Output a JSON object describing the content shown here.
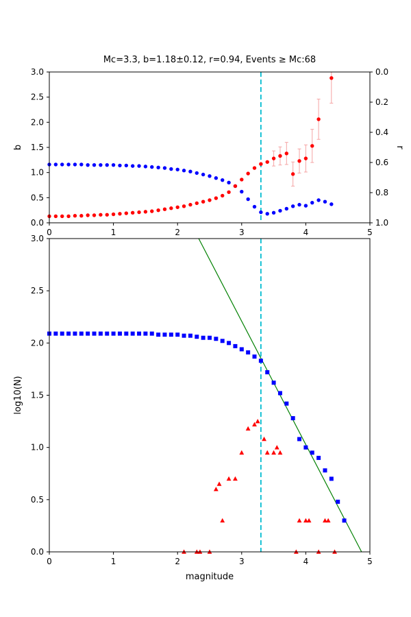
{
  "figure": {
    "title": "Mc=3.3, b=1.18±0.12, r=0.94, Events ≥ Mc:68",
    "stats": {
      "mc": 3.3,
      "b_value": "1.18±0.12",
      "r": 0.94,
      "events_ge_mc": 68
    }
  },
  "chart_data": [
    {
      "id": "b-vs-cutoff",
      "type": "scatter",
      "title": "Mc=3.3, b=1.18±0.12, r=0.94, Events ≥ Mc:68",
      "xlim": [
        0,
        5
      ],
      "ylim": [
        0,
        3
      ],
      "xticks": [
        0,
        1,
        2,
        3,
        4,
        5
      ],
      "xtick_labels": [
        "0",
        "1",
        "2",
        "3",
        "4",
        "5"
      ],
      "yticks": [
        0,
        0.5,
        1,
        1.5,
        2,
        2.5,
        3
      ],
      "ytick_labels": [
        "0.0",
        "0.5",
        "1.0",
        "1.5",
        "2.0",
        "2.5",
        "3.0"
      ],
      "ylabel": "b",
      "y2label": "r",
      "y2ticks": [
        0,
        0.2,
        0.4,
        0.6,
        0.8,
        1.0
      ],
      "y2tick_labels": [
        "0.0",
        "0.2",
        "0.4",
        "0.6",
        "0.8",
        "1.0"
      ],
      "y2_direction": "inverted-top-to-bottom",
      "vline": {
        "x": 3.3,
        "color": "#00bcd0",
        "style": "dashed"
      },
      "series": [
        {
          "name": "b-value",
          "marker": "circle",
          "color": "#0000ff",
          "x": [
            0,
            0.1,
            0.2,
            0.3,
            0.4,
            0.5,
            0.6,
            0.7,
            0.8,
            0.9,
            1,
            1.1,
            1.2,
            1.3,
            1.4,
            1.5,
            1.6,
            1.7,
            1.8,
            1.9,
            2,
            2.1,
            2.2,
            2.3,
            2.4,
            2.5,
            2.6,
            2.7,
            2.8,
            2.9,
            3,
            3.1,
            3.2,
            3.3,
            3.4,
            3.5,
            3.6,
            3.7,
            3.8,
            3.9,
            4,
            4.1,
            4.2,
            4.3,
            4.4
          ],
          "y": [
            1.16,
            1.16,
            1.16,
            1.16,
            1.16,
            1.16,
            1.15,
            1.15,
            1.15,
            1.15,
            1.15,
            1.14,
            1.14,
            1.13,
            1.13,
            1.12,
            1.11,
            1.1,
            1.09,
            1.07,
            1.06,
            1.04,
            1.02,
            0.99,
            0.96,
            0.93,
            0.89,
            0.85,
            0.8,
            0.73,
            0.62,
            0.47,
            0.32,
            0.21,
            0.18,
            0.2,
            0.24,
            0.28,
            0.33,
            0.36,
            0.34,
            0.4,
            0.45,
            0.42,
            0.37
          ]
        },
        {
          "name": "r-value",
          "marker": "circle",
          "color": "#ff0000",
          "error_color": "#f5a3a3",
          "x": [
            0,
            0.1,
            0.2,
            0.3,
            0.4,
            0.5,
            0.6,
            0.7,
            0.8,
            0.9,
            1,
            1.1,
            1.2,
            1.3,
            1.4,
            1.5,
            1.6,
            1.7,
            1.8,
            1.9,
            2,
            2.1,
            2.2,
            2.3,
            2.4,
            2.5,
            2.6,
            2.7,
            2.8,
            2.9,
            3,
            3.1,
            3.2,
            3.3,
            3.4,
            3.5,
            3.6,
            3.7,
            3.8,
            3.9,
            4,
            4.1,
            4.2,
            4.4
          ],
          "y": [
            0.13,
            0.13,
            0.13,
            0.13,
            0.14,
            0.14,
            0.15,
            0.15,
            0.16,
            0.16,
            0.17,
            0.18,
            0.19,
            0.2,
            0.21,
            0.22,
            0.23,
            0.25,
            0.27,
            0.29,
            0.31,
            0.33,
            0.36,
            0.39,
            0.42,
            0.45,
            0.49,
            0.54,
            0.61,
            0.73,
            0.86,
            0.98,
            1.09,
            1.17,
            1.21,
            1.28,
            1.33,
            1.38,
            0.97,
            1.23,
            1.28,
            1.53,
            2.06,
            2.88
          ],
          "yerr": [
            0,
            0,
            0,
            0,
            0,
            0,
            0,
            0,
            0,
            0,
            0,
            0,
            0,
            0,
            0,
            0,
            0,
            0,
            0,
            0,
            0,
            0,
            0,
            0,
            0,
            0,
            0,
            0,
            0,
            0,
            0,
            0,
            0,
            0,
            0,
            0.15,
            0.18,
            0.22,
            0.24,
            0.24,
            0.27,
            0.33,
            0.4,
            0.5
          ]
        }
      ]
    },
    {
      "id": "frequency-magnitude",
      "type": "scatter",
      "xlim": [
        0,
        5
      ],
      "ylim": [
        0,
        3
      ],
      "xticks": [
        0,
        1,
        2,
        3,
        4,
        5
      ],
      "xtick_labels": [
        "0",
        "1",
        "2",
        "3",
        "4",
        "5"
      ],
      "yticks": [
        0,
        0.5,
        1,
        1.5,
        2,
        2.5,
        3
      ],
      "ytick_labels": [
        "0.0",
        "0.5",
        "1.0",
        "1.5",
        "2.0",
        "2.5",
        "3.0"
      ],
      "xlabel": "magnitude",
      "ylabel": "log10(N)",
      "vline": {
        "x": 3.3,
        "color": "#00bcd0",
        "style": "dashed"
      },
      "fit_line": {
        "x": [
          2.33,
          4.87
        ],
        "y": [
          3.0,
          0.0
        ],
        "color": "#008000"
      },
      "series": [
        {
          "name": "cumulative-count",
          "marker": "square",
          "color": "#0000ff",
          "x": [
            0,
            0.1,
            0.2,
            0.3,
            0.4,
            0.5,
            0.6,
            0.7,
            0.8,
            0.9,
            1,
            1.1,
            1.2,
            1.3,
            1.4,
            1.5,
            1.6,
            1.7,
            1.8,
            1.9,
            2,
            2.1,
            2.2,
            2.3,
            2.4,
            2.5,
            2.6,
            2.7,
            2.8,
            2.9,
            3,
            3.1,
            3.2,
            3.3,
            3.4,
            3.5,
            3.6,
            3.7,
            3.8,
            3.9,
            4,
            4.1,
            4.2,
            4.3,
            4.4,
            4.5,
            4.6
          ],
          "y": [
            2.09,
            2.09,
            2.09,
            2.09,
            2.09,
            2.09,
            2.09,
            2.09,
            2.09,
            2.09,
            2.09,
            2.09,
            2.09,
            2.09,
            2.09,
            2.09,
            2.09,
            2.08,
            2.08,
            2.08,
            2.08,
            2.07,
            2.07,
            2.06,
            2.05,
            2.05,
            2.04,
            2.02,
            2.0,
            1.97,
            1.94,
            1.91,
            1.87,
            1.83,
            1.72,
            1.62,
            1.52,
            1.42,
            1.28,
            1.08,
            1.0,
            0.95,
            0.9,
            0.78,
            0.7,
            0.48,
            0.3
          ]
        },
        {
          "name": "non-cumulative-count",
          "marker": "triangle",
          "color": "#ff0000",
          "x": [
            2.1,
            2.3,
            2.35,
            2.5,
            2.6,
            2.65,
            2.7,
            2.8,
            2.9,
            3.0,
            3.1,
            3.2,
            3.25,
            3.35,
            3.4,
            3.5,
            3.55,
            3.6,
            3.85,
            3.9,
            4.0,
            4.05,
            4.2,
            4.3,
            4.35,
            4.45
          ],
          "y": [
            0.0,
            0.0,
            0.0,
            0.0,
            0.6,
            0.65,
            0.3,
            0.7,
            0.7,
            0.95,
            1.18,
            1.22,
            1.25,
            1.08,
            0.95,
            0.95,
            1.0,
            0.95,
            0.0,
            0.3,
            0.3,
            0.3,
            0.0,
            0.3,
            0.3,
            0.0
          ]
        }
      ]
    }
  ]
}
